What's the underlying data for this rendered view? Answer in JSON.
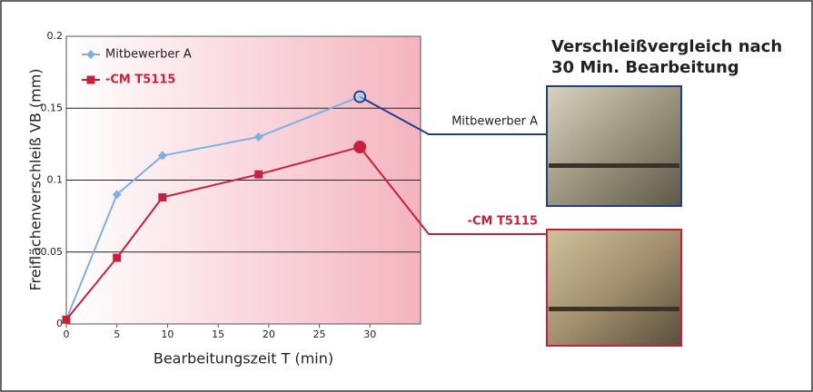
{
  "chart_data": {
    "type": "line",
    "x_label": "Bearbeitungszeit T (min)",
    "y_label": "Freiflächenverschleiß VB (mm)",
    "x": [
      0,
      5,
      9.5,
      19,
      29
    ],
    "series": [
      {
        "name": "Mitbewerber A",
        "color": "#7fb0e0",
        "values": [
          0.003,
          0.09,
          0.117,
          0.13,
          0.158
        ]
      },
      {
        "name": "-CM T5115",
        "color": "#c8203c",
        "values": [
          0.003,
          0.046,
          0.088,
          0.104,
          0.123
        ]
      }
    ],
    "xlim": [
      0,
      35
    ],
    "xticks": [
      0,
      5,
      10,
      15,
      20,
      25,
      30
    ],
    "ylim": [
      0,
      0.2
    ],
    "yticks": [
      0,
      0.05,
      0.1,
      0.15,
      0.2
    ],
    "grid": true,
    "legend": "top-left",
    "comparison_title": [
      "Verschleißvergleich nach",
      "30 Min. Bearbeitung"
    ]
  }
}
